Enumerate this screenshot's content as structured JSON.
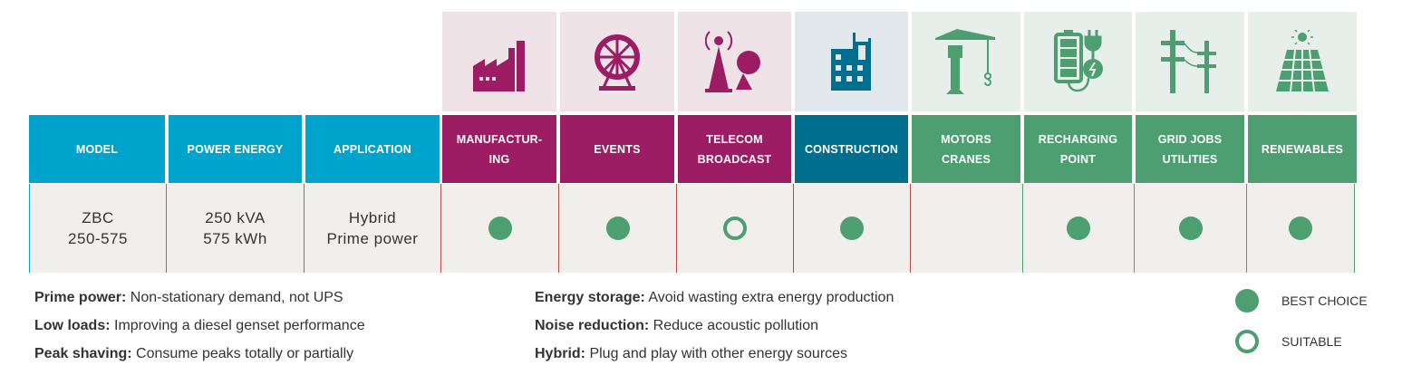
{
  "colors": {
    "spec_header": "#00a3cc",
    "manufacturing_events_telecom": "#9c1d63",
    "construction": "#006e8f",
    "green_sectors": "#4d9e70",
    "cell_bg": "#f1efeb"
  },
  "spec_headers": [
    "MODEL",
    "POWER ENERGY",
    "APPLICATION"
  ],
  "row": {
    "model": [
      "ZBC",
      "250-575"
    ],
    "power": [
      "250 kVA",
      "575 kWh"
    ],
    "application": [
      "Hybrid",
      "Prime power"
    ]
  },
  "sectors": [
    {
      "label": [
        "MANUFACTUR-",
        "ING"
      ],
      "icon": "factory-icon",
      "rating": "best"
    },
    {
      "label": [
        "EVENTS"
      ],
      "icon": "ferris-wheel-icon",
      "rating": "best"
    },
    {
      "label": [
        "TELECOM",
        "BROADCAST"
      ],
      "icon": "antenna-icon",
      "rating": "suitable"
    },
    {
      "label": [
        "CONSTRUCTION"
      ],
      "icon": "building-icon",
      "rating": "best"
    },
    {
      "label": [
        "MOTORS",
        "CRANES"
      ],
      "icon": "crane-icon",
      "rating": ""
    },
    {
      "label": [
        "RECHARGING",
        "POINT"
      ],
      "icon": "battery-plug-icon",
      "rating": "best"
    },
    {
      "label": [
        "GRID JOBS",
        "UTILITIES"
      ],
      "icon": "power-pole-icon",
      "rating": "best"
    },
    {
      "label": [
        "RENEWABLES"
      ],
      "icon": "solar-panel-icon",
      "rating": "best"
    }
  ],
  "glossary": [
    {
      "term": "Prime power:",
      "desc": " Non-stationary demand, not UPS"
    },
    {
      "term": "Low loads:",
      "desc": " Improving a diesel genset performance"
    },
    {
      "term": "Peak shaving:",
      "desc": " Consume peaks totally or partially"
    },
    {
      "term": "Energy storage:",
      "desc": " Avoid wasting extra energy production"
    },
    {
      "term": "Noise reduction:",
      "desc": " Reduce acoustic pollution"
    },
    {
      "term": "Hybrid:",
      "desc": " Plug and play with other energy sources"
    }
  ],
  "legend": {
    "best": "BEST CHOICE",
    "suitable": "SUITABLE"
  }
}
